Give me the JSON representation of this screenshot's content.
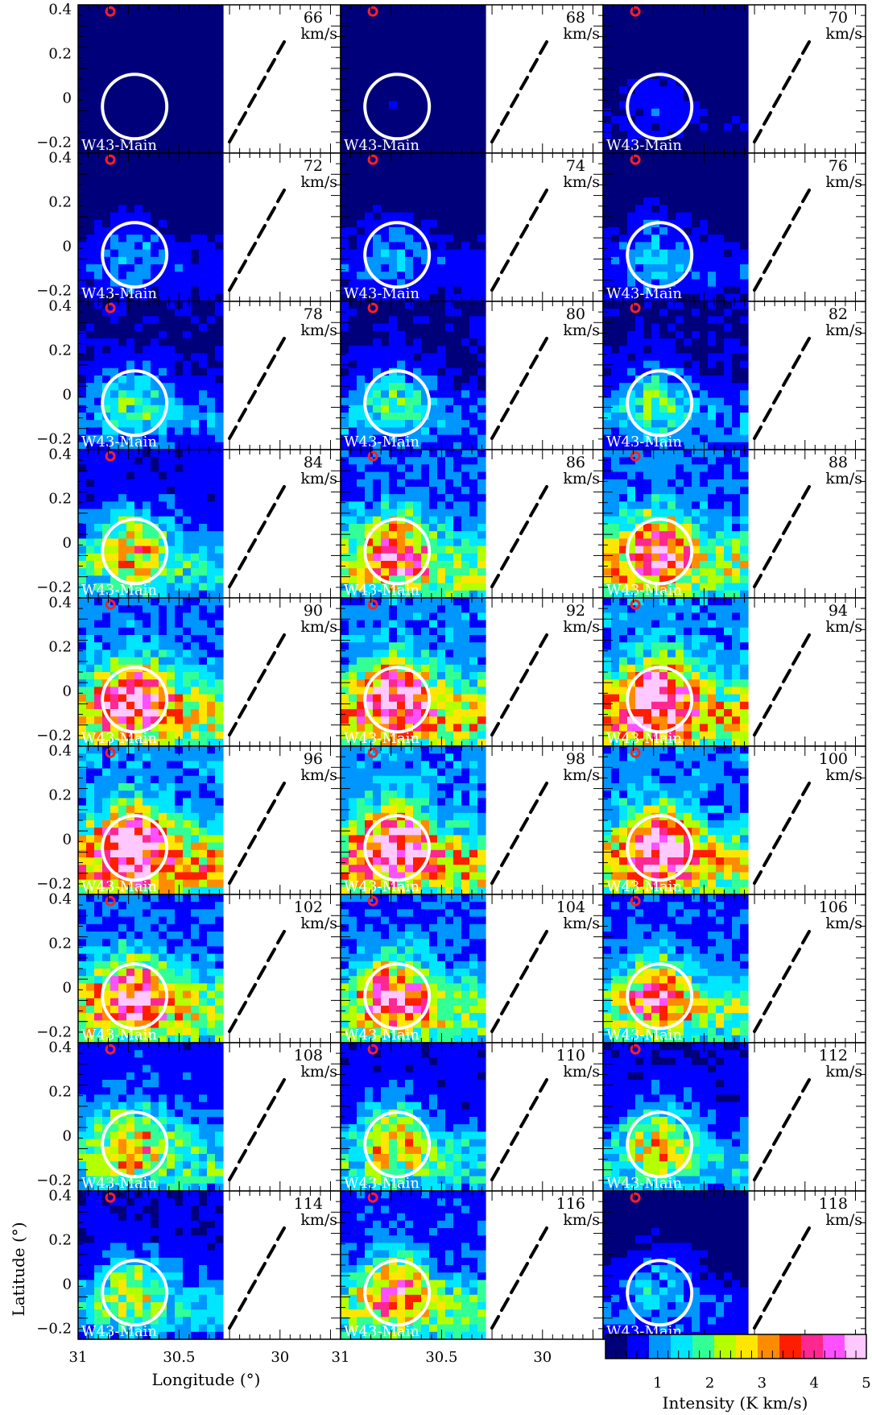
{
  "chart_data": {
    "type": "heatmap",
    "layout": "3 columns x 9 rows channel maps",
    "source_label": "W43-Main",
    "velocity_unit": "km/s",
    "velocities": [
      66,
      68,
      70,
      72,
      74,
      76,
      78,
      80,
      82,
      84,
      86,
      88,
      90,
      92,
      94,
      96,
      98,
      100,
      102,
      104,
      106,
      108,
      110,
      112,
      114,
      116,
      118
    ],
    "panel_peak_intensity": [
      0.3,
      0.3,
      0.6,
      1.0,
      1.0,
      1.1,
      1.6,
      1.6,
      1.7,
      2.6,
      3.7,
      4.0,
      4.3,
      4.5,
      4.8,
      4.9,
      4.7,
      4.4,
      4.2,
      3.8,
      3.4,
      2.9,
      2.6,
      2.4,
      2.2,
      3.2,
      1.2
    ],
    "xlabel": "Longitude (°)",
    "ylabel": "Latitude (°)",
    "x_ticks": [
      "31",
      "30.5",
      "30"
    ],
    "y_ticks": [
      "0.4",
      "0.2",
      "0",
      "−0.2"
    ],
    "xlim": [
      31,
      29.7
    ],
    "ylim": [
      -0.25,
      0.42
    ],
    "colorbar": {
      "label": "Intensity (K km/s)",
      "ticks": [
        "1",
        "2",
        "3",
        "4",
        "5"
      ],
      "range": [
        0,
        5
      ],
      "colors": [
        "#00007a",
        "#0000ff",
        "#0096ff",
        "#00e6ff",
        "#32ff96",
        "#b4ff00",
        "#ffe600",
        "#ff8c00",
        "#ff1e00",
        "#ff2890",
        "#ff50ff",
        "#ffc8ff"
      ]
    },
    "markers": {
      "circle_color": "#ffffff",
      "source_marker_color": "#ff2020",
      "survey_edge_color": "#000000"
    }
  }
}
